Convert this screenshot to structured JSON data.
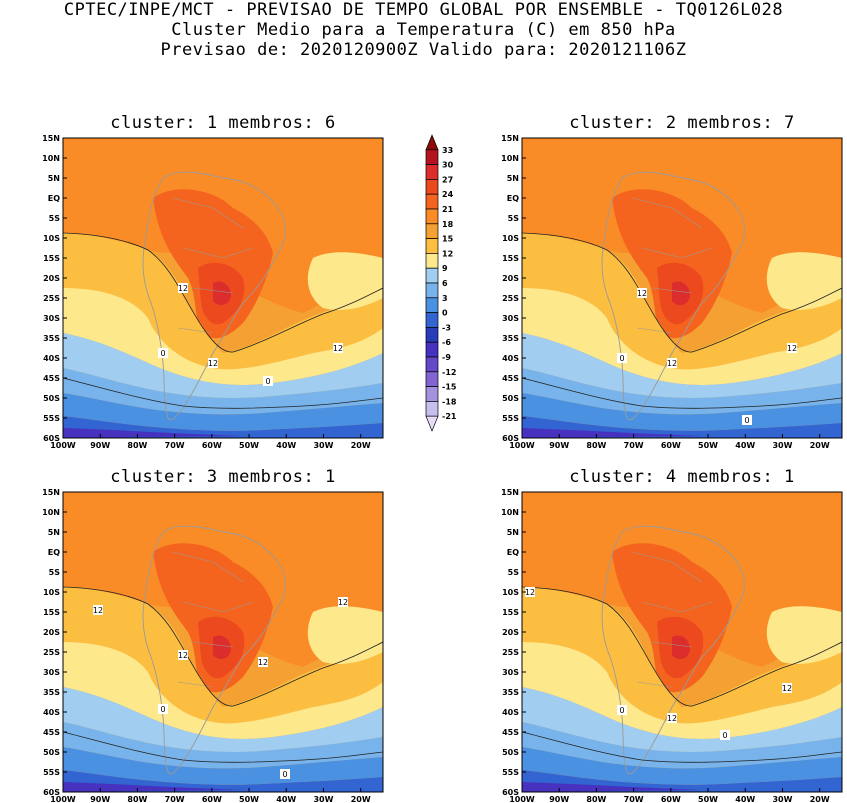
{
  "header": {
    "line1": "CPTEC/INPE/MCT - PREVISAO DE TEMPO GLOBAL POR ENSEMBLE - TQ0126L028",
    "line2": "Cluster Medio para a Temperatura (C) em 850 hPa",
    "line3": "Previsao de: 2020120900Z   Valido para: 2020121106Z"
  },
  "axes": {
    "lat_ticks": [
      "15N",
      "10N",
      "5N",
      "EQ",
      "5S",
      "10S",
      "15S",
      "20S",
      "25S",
      "30S",
      "35S",
      "40S",
      "45S",
      "50S",
      "55S",
      "60S"
    ],
    "lon_ticks": [
      "100W",
      "90W",
      "80W",
      "70W",
      "60W",
      "50W",
      "40W",
      "30W",
      "20W"
    ]
  },
  "colorbar": {
    "labels": [
      "33",
      "30",
      "27",
      "24",
      "21",
      "18",
      "15",
      "12",
      "9",
      "6",
      "3",
      "0",
      "-3",
      "-6",
      "-9",
      "-12",
      "-15",
      "-18",
      "-21"
    ],
    "colors": [
      "#8c0a0a",
      "#b4141e",
      "#dc2d2d",
      "#ec4a1e",
      "#f5641e",
      "#fa8c28",
      "#f5a032",
      "#fbbe41",
      "#fde88c",
      "#a0cdf0",
      "#78b4eb",
      "#4b91e1",
      "#3264d2",
      "#283cb9",
      "#4632be",
      "#6448c8",
      "#8264d2",
      "#a591dc",
      "#c8beeb",
      "#e6dcf5"
    ]
  },
  "panels": [
    {
      "title": "cluster: 1  membros: 6",
      "contour_labels": [
        "12",
        "12",
        "12",
        "0",
        "0"
      ]
    },
    {
      "title": "cluster: 2  membros: 7",
      "contour_labels": [
        "12",
        "12",
        "12",
        "0",
        "0"
      ]
    },
    {
      "title": "cluster: 3  membros: 1",
      "contour_labels": [
        "12",
        "12",
        "12",
        "12",
        "0",
        "0"
      ]
    },
    {
      "title": "cluster: 4  membros: 1",
      "contour_labels": [
        "12",
        "12",
        "12",
        "0",
        "0"
      ]
    }
  ]
}
